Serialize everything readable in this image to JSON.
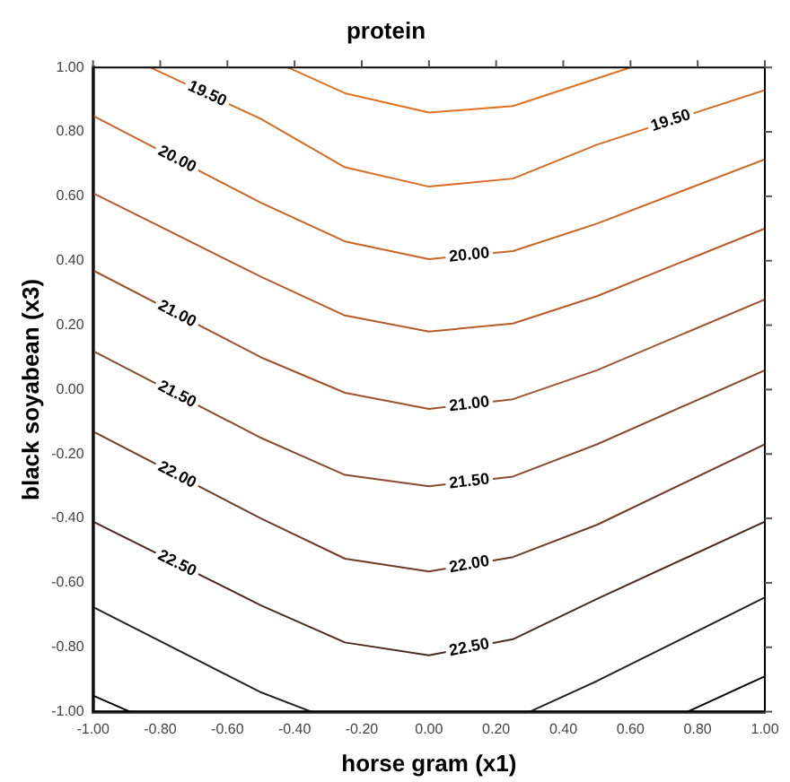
{
  "chart_data": {
    "type": "line",
    "title": "protein",
    "xlabel": "horse gram (x1)",
    "ylabel": "black soyabean (x3)",
    "xlim": [
      -1,
      1
    ],
    "ylim": [
      -1,
      1
    ],
    "xticks": [
      {
        "value": -1,
        "label": "-1.00"
      },
      {
        "value": -0.8,
        "label": "-0.80"
      },
      {
        "value": -0.6,
        "label": "-0.60"
      },
      {
        "value": -0.4,
        "label": "-0.40"
      },
      {
        "value": -0.2,
        "label": "-0.20"
      },
      {
        "value": 0,
        "label": "0.00"
      },
      {
        "value": 0.2,
        "label": "0.20"
      },
      {
        "value": 0.4,
        "label": "0.40"
      },
      {
        "value": 0.6,
        "label": "0.60"
      },
      {
        "value": 0.8,
        "label": "0.80"
      },
      {
        "value": 1,
        "label": "1.00"
      }
    ],
    "yticks": [
      {
        "value": -1,
        "label": "-1.00"
      },
      {
        "value": -0.8,
        "label": "-0.80"
      },
      {
        "value": -0.6,
        "label": "-0.60"
      },
      {
        "value": -0.4,
        "label": "-0.40"
      },
      {
        "value": -0.2,
        "label": "-0.20"
      },
      {
        "value": 0,
        "label": "0.00"
      },
      {
        "value": 0.2,
        "label": "0.20"
      },
      {
        "value": 0.4,
        "label": "0.40"
      },
      {
        "value": 0.6,
        "label": "0.60"
      },
      {
        "value": 0.8,
        "label": "0.80"
      },
      {
        "value": 1,
        "label": "1.00"
      }
    ],
    "grid": false,
    "legend": false,
    "marker": "none",
    "line_style": "solid",
    "series": [
      {
        "color": "#e0711f",
        "x": [
          -0.42,
          -0.25,
          0,
          0.25,
          0.6
        ],
        "values": [
          1.0,
          0.92,
          0.86,
          0.88,
          1.0
        ]
      },
      {
        "name": "19.50",
        "color": "#d86b22",
        "x": [
          -0.83,
          -0.5,
          -0.25,
          0,
          0.25,
          0.5,
          1
        ],
        "values": [
          1.0,
          0.84,
          0.69,
          0.63,
          0.655,
          0.76,
          0.93
        ]
      },
      {
        "name": "20.00",
        "color": "#cc6424",
        "x": [
          -1,
          -0.5,
          -0.25,
          0,
          0.25,
          0.5,
          1
        ],
        "values": [
          0.85,
          0.58,
          0.46,
          0.405,
          0.43,
          0.515,
          0.715
        ]
      },
      {
        "color": "#b85a28",
        "x": [
          -1,
          -0.5,
          -0.25,
          0,
          0.25,
          0.5,
          1
        ],
        "values": [
          0.61,
          0.35,
          0.23,
          0.18,
          0.205,
          0.29,
          0.5
        ]
      },
      {
        "name": "21.00",
        "color": "#a0522d",
        "x": [
          -1,
          -0.5,
          -0.25,
          0,
          0.25,
          0.5,
          1
        ],
        "values": [
          0.37,
          0.1,
          -0.01,
          -0.06,
          -0.03,
          0.06,
          0.28
        ]
      },
      {
        "name": "21.50",
        "color": "#8a4a2e",
        "x": [
          -1,
          -0.5,
          -0.25,
          0,
          0.25,
          0.5,
          1
        ],
        "values": [
          0.12,
          -0.15,
          -0.265,
          -0.3,
          -0.27,
          -0.17,
          0.06
        ]
      },
      {
        "name": "22.00",
        "color": "#6e3c28",
        "x": [
          -1,
          -0.5,
          -0.25,
          0,
          0.25,
          0.5,
          1
        ],
        "values": [
          -0.13,
          -0.4,
          -0.525,
          -0.565,
          -0.52,
          -0.42,
          -0.17
        ]
      },
      {
        "name": "22.50",
        "color": "#4a2a1e",
        "x": [
          -1,
          -0.5,
          -0.25,
          0,
          0.25,
          0.5,
          1
        ],
        "values": [
          -0.41,
          -0.67,
          -0.785,
          -0.825,
          -0.775,
          -0.65,
          -0.41
        ]
      },
      {
        "color": "#222222",
        "x": [
          -1,
          -0.5,
          -0.35,
          0,
          0.3,
          0.5,
          1
        ],
        "values": [
          -0.675,
          -0.94,
          -1.0,
          null,
          -1.0,
          -0.905,
          -0.645
        ]
      },
      {
        "color": "#000000",
        "x": [
          -1,
          -0.89,
          0,
          0.77,
          1
        ],
        "values": [
          -0.95,
          -1.0,
          null,
          -1.0,
          -0.89
        ]
      }
    ]
  }
}
